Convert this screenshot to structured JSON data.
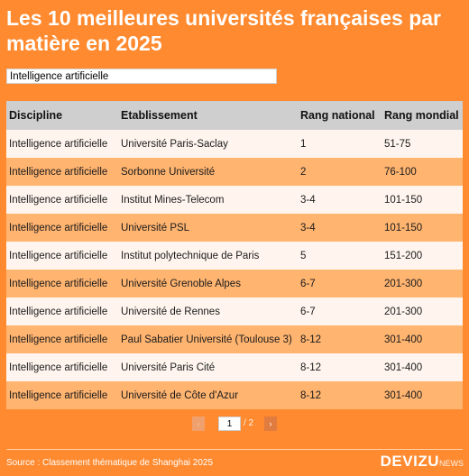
{
  "title": "Les 10 meilleures universités françaises par matière en 2025",
  "filter": {
    "value": "Intelligence artificielle"
  },
  "table": {
    "headers": [
      "Discipline",
      "Etablissement",
      "Rang national",
      "Rang mondial"
    ],
    "rows": [
      [
        "Intelligence artificielle",
        "Université Paris-Saclay",
        "1",
        "51-75"
      ],
      [
        "Intelligence artificielle",
        "Sorbonne Université",
        "2",
        "76-100"
      ],
      [
        "Intelligence artificielle",
        "Institut Mines-Telecom",
        "3-4",
        "101-150"
      ],
      [
        "Intelligence artificielle",
        "Université PSL",
        "3-4",
        "101-150"
      ],
      [
        "Intelligence artificielle",
        "Institut polytechnique de Paris",
        "5",
        "151-200"
      ],
      [
        "Intelligence artificielle",
        "Université Grenoble Alpes",
        "6-7",
        "201-300"
      ],
      [
        "Intelligence artificielle",
        "Université de Rennes",
        "6-7",
        "201-300"
      ],
      [
        "Intelligence artificielle",
        "Paul Sabatier Université (Toulouse 3)",
        "8-12",
        "301-400"
      ],
      [
        "Intelligence artificielle",
        "Université Paris Cité",
        "8-12",
        "301-400"
      ],
      [
        "Intelligence artificielle",
        "Université de Côte d'Azur",
        "8-12",
        "301-400"
      ]
    ]
  },
  "pagination": {
    "prev": "‹",
    "next": "›",
    "current": "1",
    "total": "/ 2"
  },
  "footer": {
    "source": "Source : Classement thématique de Shanghai 2025",
    "brand": "DEVIZU",
    "brand_sub": "NEWS"
  },
  "colors": {
    "background": "#ff8a2f",
    "header_row": "#cfcfcf",
    "row_light": "#fff5ee",
    "row_dark": "#ffb470"
  }
}
